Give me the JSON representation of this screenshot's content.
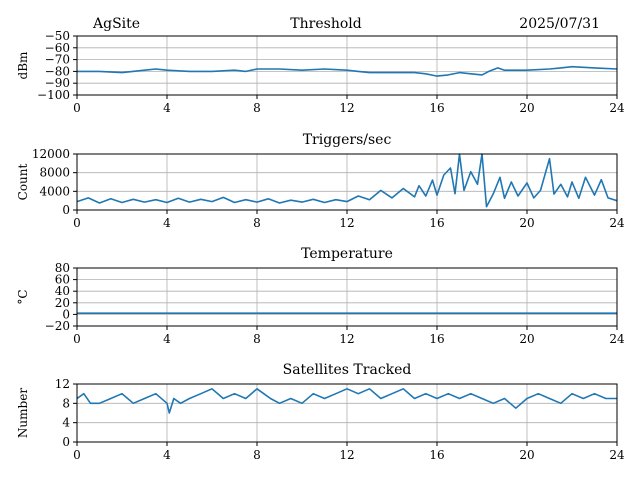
{
  "header": {
    "left": "AgSite",
    "center": "Threshold",
    "right": "2025/07/31"
  },
  "style": {
    "line_color": "#1f77b4",
    "grid_color": "#b0b0b0",
    "axis_color": "#000000"
  },
  "chart_data": [
    {
      "type": "line",
      "title": "",
      "xlabel": "",
      "ylabel": "dBm",
      "xlim": [
        0,
        24
      ],
      "ylim": [
        -100,
        -50
      ],
      "xticks": [
        "0",
        "4",
        "8",
        "12",
        "16",
        "20",
        "24"
      ],
      "yticks": [
        "−50",
        "−60",
        "−70",
        "−80",
        "−90",
        "−100"
      ],
      "ytick_values": [
        -50,
        -60,
        -70,
        -80,
        -90,
        -100
      ],
      "grid": true,
      "series": [
        {
          "x": [
            0,
            1,
            2,
            3,
            3.5,
            4,
            5,
            6,
            7,
            7.5,
            8,
            9,
            10,
            11,
            12,
            12.5,
            13,
            14,
            15,
            15.5,
            16,
            16.5,
            17,
            17.5,
            18,
            18.3,
            18.7,
            19,
            20,
            21,
            21.5,
            22,
            23,
            24
          ],
          "values": [
            -80,
            -80,
            -81,
            -79,
            -78,
            -79,
            -80,
            -80,
            -79,
            -80,
            -78,
            -78,
            -79,
            -78,
            -79,
            -80,
            -81,
            -81,
            -81,
            -82,
            -84,
            -83,
            -81,
            -82,
            -83,
            -80,
            -77,
            -79,
            -79,
            -78,
            -77,
            -76,
            -77,
            -78
          ]
        }
      ]
    },
    {
      "type": "line",
      "title": "Triggers/sec",
      "xlabel": "",
      "ylabel": "Count",
      "xlim": [
        0,
        24
      ],
      "ylim": [
        0,
        12000
      ],
      "xticks": [
        "0",
        "4",
        "8",
        "12",
        "16",
        "20",
        "24"
      ],
      "yticks": [
        "12000",
        "8000",
        "4000",
        "0"
      ],
      "ytick_values": [
        12000,
        8000,
        4000,
        0
      ],
      "grid": true,
      "series": [
        {
          "x": [
            0,
            0.5,
            1,
            1.5,
            2,
            2.5,
            3,
            3.5,
            4,
            4.5,
            5,
            5.5,
            6,
            6.5,
            7,
            7.5,
            8,
            8.5,
            9,
            9.5,
            10,
            10.5,
            11,
            11.5,
            12,
            12.5,
            13,
            13.5,
            14,
            14.5,
            15,
            15.2,
            15.5,
            15.8,
            16,
            16.3,
            16.6,
            16.8,
            17,
            17.2,
            17.5,
            17.8,
            18,
            18.2,
            18.5,
            18.8,
            19,
            19.3,
            19.6,
            20,
            20.3,
            20.6,
            21,
            21.2,
            21.5,
            21.8,
            22,
            22.3,
            22.6,
            23,
            23.3,
            23.6,
            24
          ],
          "values": [
            1800,
            2600,
            1500,
            2400,
            1600,
            2300,
            1700,
            2200,
            1600,
            2500,
            1700,
            2300,
            1800,
            2700,
            1600,
            2200,
            1700,
            2400,
            1500,
            2100,
            1700,
            2300,
            1600,
            2200,
            1800,
            3000,
            2200,
            4200,
            2600,
            4600,
            2800,
            5200,
            3000,
            6400,
            3200,
            7500,
            9000,
            3500,
            12000,
            4200,
            8200,
            5500,
            12000,
            700,
            3500,
            7000,
            2500,
            6000,
            3000,
            5800,
            2600,
            4200,
            11000,
            3400,
            5500,
            2800,
            6000,
            2500,
            7000,
            3200,
            6500,
            2600,
            2000
          ]
        }
      ]
    },
    {
      "type": "line",
      "title": "Temperature",
      "xlabel": "",
      "ylabel": "°C",
      "xlim": [
        0,
        24
      ],
      "ylim": [
        -20,
        80
      ],
      "xticks": [
        "0",
        "4",
        "8",
        "12",
        "16",
        "20",
        "24"
      ],
      "yticks": [
        "80",
        "60",
        "40",
        "20",
        "0",
        "−20"
      ],
      "ytick_values": [
        80,
        60,
        40,
        20,
        0,
        -20
      ],
      "grid": true,
      "series": [
        {
          "x": [
            0,
            24
          ],
          "values": [
            2,
            2
          ]
        }
      ]
    },
    {
      "type": "line",
      "title": "Satellites Tracked",
      "xlabel": "",
      "ylabel": "Number",
      "xlim": [
        0,
        24
      ],
      "ylim": [
        0,
        12
      ],
      "xticks": [
        "0",
        "4",
        "8",
        "12",
        "16",
        "20",
        "24"
      ],
      "yticks": [
        "12",
        "8",
        "4",
        "0"
      ],
      "ytick_values": [
        12,
        8,
        4,
        0
      ],
      "grid": true,
      "series": [
        {
          "x": [
            0,
            0.3,
            0.6,
            1,
            1.5,
            2,
            2.5,
            3,
            3.5,
            4,
            4.1,
            4.3,
            4.6,
            5,
            5.5,
            6,
            6.5,
            7,
            7.5,
            8,
            8.3,
            8.6,
            9,
            9.5,
            10,
            10.5,
            11,
            11.5,
            12,
            12.5,
            13,
            13.5,
            14,
            14.5,
            15,
            15.5,
            16,
            16.5,
            17,
            17.5,
            18,
            18.5,
            19,
            19.5,
            20,
            20.5,
            21,
            21.5,
            22,
            22.5,
            23,
            23.5,
            24
          ],
          "values": [
            9,
            10,
            8,
            8,
            9,
            10,
            8,
            9,
            10,
            8,
            6,
            9,
            8,
            9,
            10,
            11,
            9,
            10,
            9,
            11,
            10,
            9,
            8,
            9,
            8,
            10,
            9,
            10,
            11,
            10,
            11,
            9,
            10,
            11,
            9,
            10,
            9,
            10,
            9,
            10,
            9,
            8,
            9,
            7,
            9,
            10,
            9,
            8,
            10,
            9,
            10,
            9,
            9
          ]
        }
      ]
    }
  ]
}
